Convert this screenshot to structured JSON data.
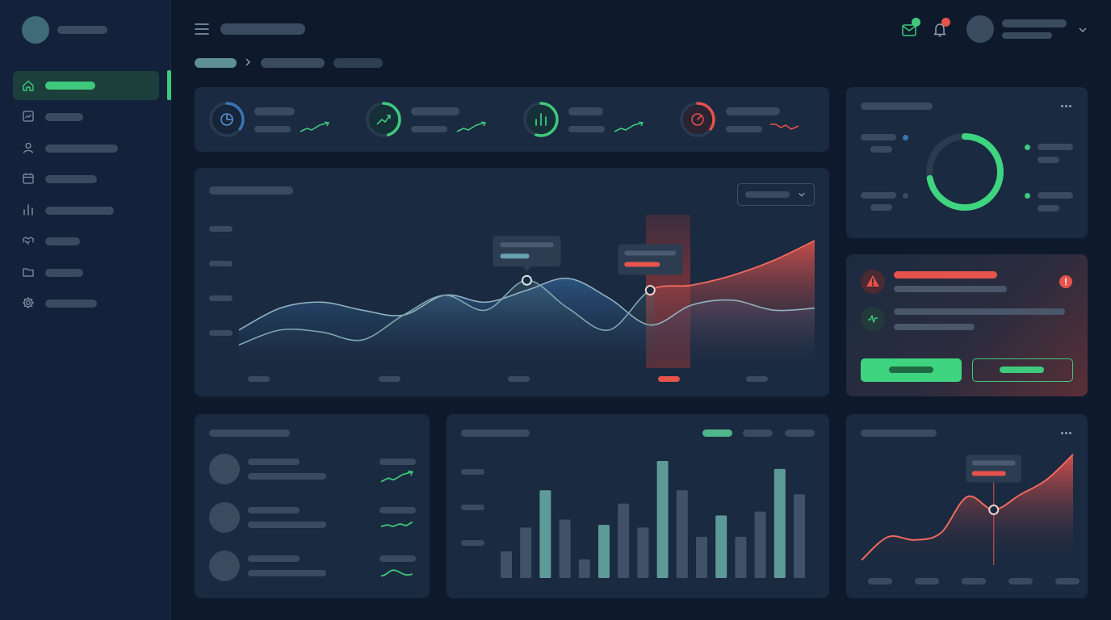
{
  "theme": {
    "background": "#0e1a2c",
    "sidebar": "#13223a",
    "card": "#1a2a40",
    "accent_green": "#3fc97c",
    "accent_red": "#e5534b",
    "accent_blue": "#3a74b3"
  },
  "sidebar": {
    "items": [
      {
        "icon": "home-icon",
        "active": true
      },
      {
        "icon": "chart-icon",
        "active": false
      },
      {
        "icon": "user-icon",
        "active": false
      },
      {
        "icon": "calendar-icon",
        "active": false
      },
      {
        "icon": "bar-chart-icon",
        "active": false
      },
      {
        "icon": "handshake-icon",
        "active": false
      },
      {
        "icon": "folder-icon",
        "active": false
      },
      {
        "icon": "gear-icon",
        "active": false
      }
    ]
  },
  "header": {
    "icons": [
      "menu-icon",
      "mail-icon",
      "bell-icon",
      "chevron-down-icon"
    ],
    "mail_badge_color": "#3fc97c",
    "bell_badge_color": "#e5534b"
  },
  "stats": [
    {
      "icon": "pie-icon",
      "ring_color": "#3a74b3",
      "ring_fraction": 0.35,
      "trend": "up"
    },
    {
      "icon": "trend-up-icon",
      "ring_color": "#3fc97c",
      "ring_fraction": 0.45,
      "trend": "up"
    },
    {
      "icon": "bar-chart-icon",
      "ring_color": "#3fc97c",
      "ring_fraction": 0.55,
      "trend": "up"
    },
    {
      "icon": "gauge-icon",
      "ring_color": "#e5534b",
      "ring_fraction": 0.35,
      "trend": "down"
    }
  ],
  "donut": {
    "fraction": 0.72,
    "color": "#3fc97c"
  },
  "chart_data": [
    {
      "type": "area",
      "x": [
        0,
        1,
        2,
        3,
        4,
        5,
        6,
        7,
        8,
        9,
        10,
        11,
        12,
        13,
        14
      ],
      "series": [
        {
          "values": [
            40,
            62,
            68,
            60,
            55,
            75,
            68,
            80,
            92,
            72,
            45,
            65,
            70,
            60,
            62
          ]
        },
        {
          "values": [
            25,
            40,
            38,
            30,
            55,
            75,
            60,
            90,
            62,
            40,
            80,
            85,
            95,
            110,
            130
          ]
        }
      ],
      "highlight_point": 7,
      "alert_point": 10
    },
    {
      "type": "bar",
      "values": [
        20,
        38,
        66,
        44,
        14,
        40,
        56,
        38,
        88,
        66,
        31,
        47,
        31,
        50,
        82,
        63
      ],
      "highlight": [
        2,
        5,
        8,
        11,
        14
      ]
    },
    {
      "type": "area",
      "x": [
        0,
        1,
        2,
        3,
        4,
        5,
        6,
        7,
        8
      ],
      "values": [
        5,
        28,
        25,
        32,
        68,
        55,
        70,
        85,
        110
      ],
      "highlight_point": 5
    }
  ],
  "list": [
    {
      "trend": "up"
    },
    {
      "trend": "flat"
    },
    {
      "trend": "wave"
    }
  ]
}
